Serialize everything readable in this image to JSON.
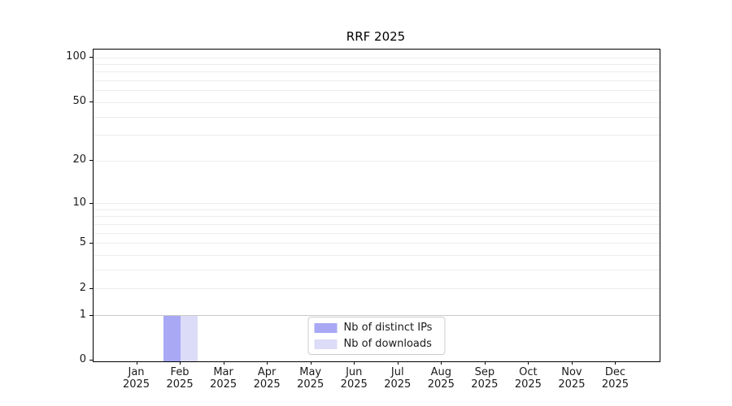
{
  "figure": {
    "title": "RRF 2025"
  },
  "chart_data": {
    "type": "bar",
    "title": "RRF 2025",
    "categories": [
      "Jan",
      "Feb",
      "Mar",
      "Apr",
      "May",
      "Jun",
      "Jul",
      "Aug",
      "Sep",
      "Oct",
      "Nov",
      "Dec"
    ],
    "category_year": "2025",
    "series": [
      {
        "name": "Nb of distinct IPs",
        "color": "#a8a8f4",
        "values": [
          0,
          1,
          0,
          0,
          0,
          0,
          0,
          0,
          0,
          0,
          0,
          0
        ]
      },
      {
        "name": "Nb of downloads",
        "color": "#dcdcf8",
        "values": [
          0,
          1,
          0,
          0,
          0,
          0,
          0,
          0,
          0,
          0,
          0,
          0
        ]
      }
    ],
    "xlabel": "",
    "ylabel": "",
    "y_axis": {
      "scale": "log1p",
      "lim": [
        0,
        100
      ],
      "tick_values": [
        0,
        1,
        2,
        5,
        10,
        20,
        50,
        100
      ],
      "tick_labels": [
        "0",
        "1",
        "2",
        "5",
        "10",
        "20",
        "50",
        "100"
      ],
      "gridline_values": [
        1,
        2,
        3,
        4,
        5,
        6,
        7,
        8,
        9,
        10,
        20,
        30,
        40,
        50,
        60,
        70,
        80,
        90,
        100
      ]
    },
    "grid": true,
    "legend": {
      "position": "lower center",
      "entries": [
        "Nb of distinct IPs",
        "Nb of downloads"
      ]
    }
  },
  "colors": {
    "background": "#ffffff",
    "spine": "#000000",
    "text": "#1a1a1a",
    "grid_minor": "#ececec",
    "grid_unity": "#c9c9c9",
    "legend_border": "#cccccc",
    "bar_distinct_ips": "#a8a8f4",
    "bar_downloads": "#dcdcf8"
  }
}
